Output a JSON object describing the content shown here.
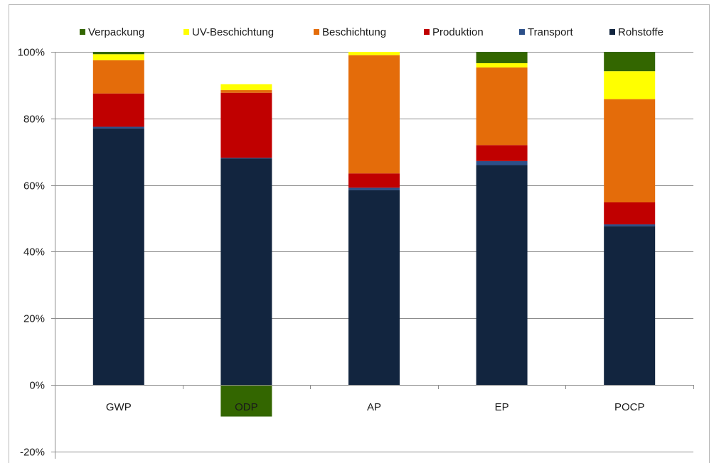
{
  "chart_data": {
    "type": "bar",
    "stacked": true,
    "categories": [
      "GWP",
      "ODP",
      "AP",
      "EP",
      "POCP"
    ],
    "ylim": [
      -20,
      100
    ],
    "yticks": [
      -20,
      0,
      20,
      40,
      60,
      80,
      100
    ],
    "ytick_suffix": "%",
    "grid": true,
    "legend_position": "top",
    "series": [
      {
        "name": "Rohstoffe",
        "color": "#12253f",
        "values": [
          77,
          68,
          58.5,
          66,
          47.7
        ]
      },
      {
        "name": "Transport",
        "color": "#2c5089",
        "values": [
          0.5,
          0.2,
          0.7,
          1.2,
          0.5
        ]
      },
      {
        "name": "Produktion",
        "color": "#c00000",
        "values": [
          10,
          19.5,
          4.3,
          4.8,
          6.6
        ]
      },
      {
        "name": "Beschichtung",
        "color": "#e46c0a",
        "values": [
          10,
          0.8,
          35.5,
          23.3,
          31
        ]
      },
      {
        "name": "UV-Beschichtung",
        "color": "#ffff00",
        "values": [
          1.8,
          1.8,
          1,
          1.3,
          8.4
        ]
      },
      {
        "name": "Verpackung",
        "color": "#336600",
        "values": [
          0.7,
          -9.5,
          0,
          3.4,
          5.8
        ]
      }
    ],
    "legend_order": [
      "Verpackung",
      "UV-Beschichtung",
      "Beschichtung",
      "Produktion",
      "Transport",
      "Rohstoffe"
    ]
  }
}
